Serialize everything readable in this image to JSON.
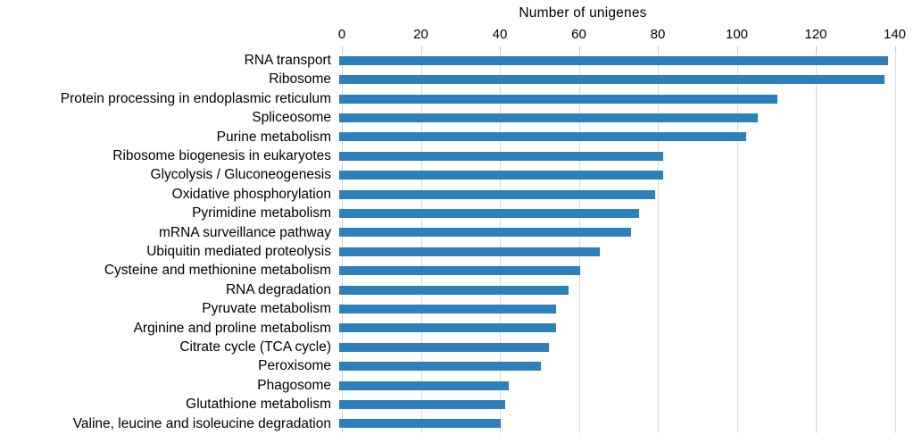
{
  "chart_data": {
    "type": "bar",
    "orientation": "horizontal",
    "title": "Number of unigenes",
    "xlabel": "Number of unigenes",
    "axis_position": "top",
    "categories": [
      "RNA transport",
      "Ribosome",
      "Protein processing in endoplasmic reticulum",
      "Spliceosome",
      "Purine metabolism",
      "Ribosome biogenesis in eukaryotes",
      "Glycolysis / Gluconeogenesis",
      "Oxidative phosphorylation",
      "Pyrimidine metabolism",
      "mRNA surveillance pathway",
      "Ubiquitin mediated proteolysis",
      "Cysteine and methionine metabolism",
      "RNA degradation",
      "Pyruvate metabolism",
      "Arginine and proline metabolism",
      "Citrate cycle (TCA cycle)",
      "Peroxisome",
      "Phagosome",
      "Glutathione metabolism",
      "Valine, leucine and isoleucine degradation"
    ],
    "values": [
      139,
      138,
      111,
      106,
      103,
      82,
      82,
      80,
      76,
      74,
      66,
      61,
      58,
      55,
      55,
      53,
      51,
      43,
      42,
      41
    ],
    "xlim": [
      0,
      140
    ],
    "xticks": [
      0,
      20,
      40,
      60,
      80,
      100,
      120,
      140
    ],
    "grid": "vertical-light",
    "legend": "none",
    "colors": {
      "bar": "#2e80bd",
      "gridline": "#d9d9d9",
      "tick": "#bfbfbf",
      "text": "#000000",
      "background": "#ffffff"
    }
  }
}
